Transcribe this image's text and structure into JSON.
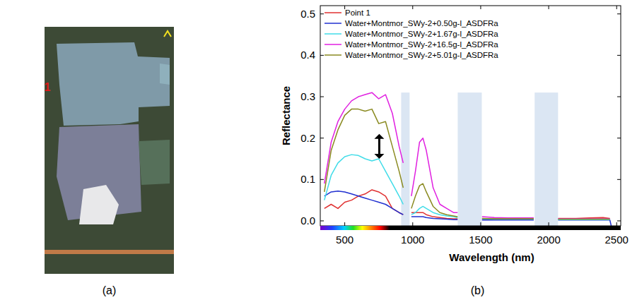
{
  "panel_a": {
    "label": "(a)",
    "marker_label": "1"
  },
  "panel_b": {
    "label": "(b)"
  },
  "chart_data": {
    "type": "line",
    "x_label": "Wavelength (nm)",
    "y_label": "Reflectance",
    "xlim": [
      320,
      2530
    ],
    "ylim": [
      -0.012,
      0.52
    ],
    "xticks": [
      500,
      1000,
      1500,
      2000,
      2500
    ],
    "yticks": [
      {
        "value": 0,
        "label": "0.0"
      },
      0.1,
      0.2,
      0.3,
      0.4,
      0.5
    ],
    "grid": false,
    "legend": "top-left",
    "masked_bands": [
      {
        "from": 915,
        "to": 977
      },
      {
        "from": 1331,
        "to": 1508
      },
      {
        "from": 1897,
        "to": 2069
      }
    ],
    "masked_top": 0.31,
    "arrow": {
      "x": 754,
      "from": 0.15,
      "to": 0.21
    },
    "x": [
      350,
      400,
      450,
      500,
      550,
      600,
      650,
      700,
      750,
      800,
      850,
      900,
      930,
      950,
      990,
      1020,
      1050,
      1075,
      1100,
      1150,
      1200,
      1250,
      1300,
      1330,
      1420,
      1510,
      1600,
      1700,
      1800,
      1890,
      1980,
      2070,
      2200,
      2300,
      2400,
      2450,
      2460,
      2500
    ],
    "series": [
      {
        "name": "Point 1",
        "color": "#e03030",
        "values": [
          0.03,
          0.04,
          0.03,
          0.045,
          0.05,
          0.06,
          0.065,
          0.075,
          0.07,
          0.06,
          0.03,
          0.02,
          0.015,
          null,
          0.02,
          0.02,
          0.02,
          0.02,
          0.015,
          0.01,
          0.008,
          0.006,
          0.005,
          0.005,
          null,
          0.004,
          0.005,
          0.005,
          0.006,
          0.006,
          null,
          0.006,
          0.006,
          0.007,
          0.008,
          0.006,
          null,
          null
        ]
      },
      {
        "name": "Water+Montmor_SWy-2+0.50g-l_ASDFRa",
        "color": "#2030d0",
        "values": [
          0.06,
          0.07,
          0.072,
          0.07,
          0.065,
          0.06,
          0.055,
          0.05,
          0.045,
          0.04,
          0.03,
          0.02,
          0.015,
          null,
          0.01,
          0.01,
          0.01,
          0.01,
          0.008,
          0.006,
          0.005,
          0.004,
          0.003,
          0.003,
          null,
          0.002,
          0.002,
          0.002,
          0.002,
          0.002,
          null,
          0.002,
          0.002,
          0.002,
          0.002,
          0.002,
          -0.012,
          null
        ]
      },
      {
        "name": "Water+Montmor_SWy-2+1.67g-l_ASDFRa",
        "color": "#40dce8",
        "values": [
          0.05,
          0.11,
          0.14,
          0.155,
          0.16,
          0.158,
          0.15,
          0.145,
          0.15,
          0.12,
          0.09,
          0.06,
          0.04,
          null,
          0.015,
          0.02,
          0.03,
          0.035,
          0.03,
          0.02,
          0.015,
          0.012,
          0.01,
          0.008,
          null,
          0.005,
          0.004,
          0.004,
          0.004,
          0.004,
          null,
          0.003,
          0.003,
          0.003,
          0.003,
          0.003,
          null,
          null
        ]
      },
      {
        "name": "Water+Montmor_SWy-2+16.5g-l_ASDFRa",
        "color": "#e020e0",
        "values": [
          0.09,
          0.19,
          0.24,
          0.27,
          0.29,
          0.3,
          0.305,
          0.31,
          0.295,
          0.305,
          0.26,
          0.18,
          0.14,
          null,
          0.06,
          0.12,
          0.19,
          0.2,
          0.17,
          0.08,
          0.04,
          0.03,
          0.02,
          0.02,
          null,
          0.01,
          0.008,
          0.007,
          0.007,
          0.007,
          null,
          0.005,
          0.005,
          0.005,
          0.005,
          0.005,
          null,
          null
        ]
      },
      {
        "name": "Water+Montmor_SWy-2+5.01g-l_ASDFRa",
        "color": "#8a8a20",
        "values": [
          0.07,
          0.17,
          0.22,
          0.255,
          0.27,
          0.27,
          0.265,
          0.27,
          0.235,
          0.24,
          0.18,
          0.12,
          0.08,
          null,
          0.03,
          0.06,
          0.085,
          0.09,
          0.07,
          0.035,
          0.02,
          0.015,
          0.012,
          0.01,
          null,
          0.006,
          0.005,
          0.005,
          0.005,
          0.005,
          null,
          0.004,
          0.004,
          0.004,
          0.004,
          0.004,
          null,
          null
        ]
      }
    ]
  }
}
